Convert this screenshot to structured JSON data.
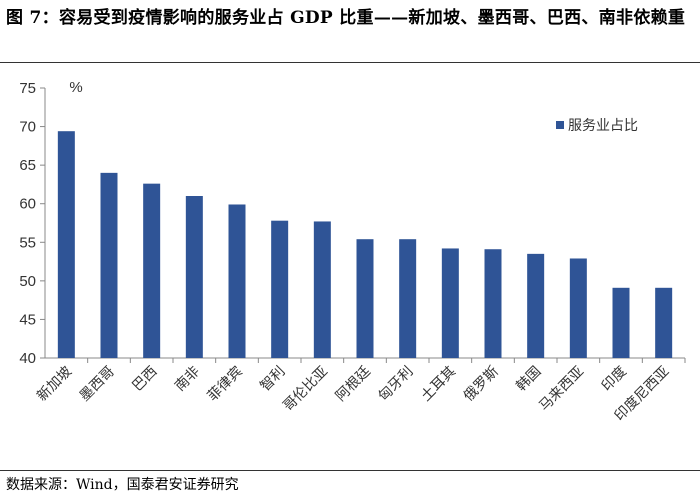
{
  "header": {
    "title": "图 7：容易受到疫情影响的服务业占 GDP 比重——新加坡、墨西哥、巴西、南非依赖重"
  },
  "footer": {
    "source": "数据来源：Wind，国泰君安证券研究"
  },
  "colors": {
    "bar": "#2F5496",
    "axis": "#888888",
    "text": "#333333"
  },
  "chart_data": {
    "type": "bar",
    "title": "",
    "unit_label": "%",
    "xlabel": "",
    "ylabel": "",
    "ylim": [
      40,
      75
    ],
    "yticks": [
      40,
      45,
      50,
      55,
      60,
      65,
      70,
      75
    ],
    "legend": "top-right",
    "grid": false,
    "categories": [
      "新加坡",
      "墨西哥",
      "巴西",
      "南非",
      "菲律宾",
      "智利",
      "哥伦比亚",
      "阿根廷",
      "匈牙利",
      "土耳其",
      "俄罗斯",
      "韩国",
      "马来西亚",
      "印度",
      "印度尼西亚"
    ],
    "series": [
      {
        "name": "服务业占比",
        "values": [
          69.4,
          64.0,
          62.6,
          61.0,
          59.9,
          57.8,
          57.7,
          55.4,
          55.4,
          54.2,
          54.1,
          53.5,
          52.9,
          49.1,
          49.1
        ]
      }
    ]
  }
}
